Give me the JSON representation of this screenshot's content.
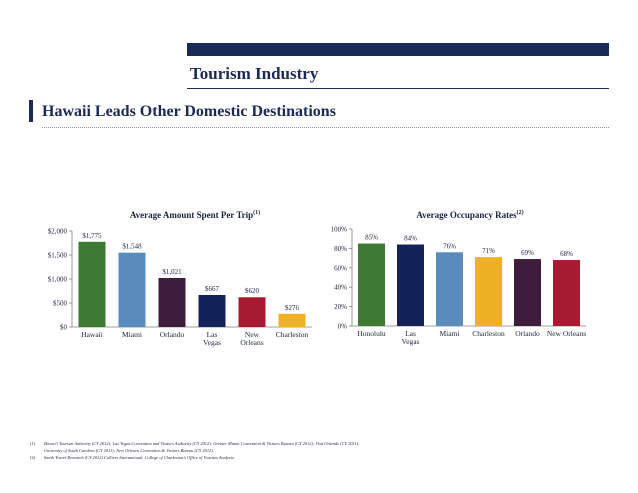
{
  "header": {
    "title": "Tourism Industry",
    "section_heading": "Hawaii Leads Other Domestic Destinations",
    "accent_color": "#1a2a57"
  },
  "chart_data": [
    {
      "type": "bar",
      "title": "Average Amount Spent Per Trip",
      "title_note": "(1)",
      "categories": [
        "Hawaii",
        "Miami",
        "Orlando",
        "Las Vegas",
        "New Orleans",
        "Charleston"
      ],
      "category_lines": [
        [
          "Hawaii"
        ],
        [
          "Miami"
        ],
        [
          "Orlando"
        ],
        [
          "Las",
          "Vegas"
        ],
        [
          "New",
          "Orleans"
        ],
        [
          "Charleston"
        ]
      ],
      "values": [
        1775,
        1548,
        1021,
        667,
        620,
        276
      ],
      "data_labels": [
        "$1,775",
        "$1,548",
        "$1,021",
        "$667",
        "$620",
        "$276"
      ],
      "colors": [
        "#3f7a35",
        "#5b8bbd",
        "#3d1c3c",
        "#14225a",
        "#a61a32",
        "#eeb025"
      ],
      "ylim": [
        0,
        2000
      ],
      "yticks": [
        0,
        500,
        1000,
        1500,
        2000
      ],
      "ytick_labels": [
        "$0",
        "$500",
        "$1,000",
        "$1,500",
        "$2,000"
      ],
      "xlabel": "",
      "ylabel": "",
      "grid": false
    },
    {
      "type": "bar",
      "title": "Average Occupancy Rates",
      "title_note": "(2)",
      "categories": [
        "Honolulu",
        "Las Vegas",
        "Miami",
        "Charleston",
        "Orlando",
        "New Orleans"
      ],
      "category_lines": [
        [
          "Honolulu"
        ],
        [
          "Las",
          "Vegas"
        ],
        [
          "Miami"
        ],
        [
          "Charleston"
        ],
        [
          "Orlando"
        ],
        [
          "New Orleans"
        ]
      ],
      "values": [
        85,
        84,
        76,
        71,
        69,
        68
      ],
      "data_labels": [
        "85%",
        "84%",
        "76%",
        "71%",
        "69%",
        "68%"
      ],
      "colors": [
        "#3f7a35",
        "#14225a",
        "#5b8bbd",
        "#eeb025",
        "#3d1c3c",
        "#a61a32"
      ],
      "ylim": [
        0,
        100
      ],
      "yticks": [
        0,
        20,
        40,
        60,
        80,
        100
      ],
      "ytick_labels": [
        "0%",
        "20%",
        "40%",
        "60%",
        "80%",
        "100%"
      ],
      "xlabel": "",
      "ylabel": "",
      "grid": false
    }
  ],
  "footnotes": [
    {
      "num": "(1)",
      "lines": [
        "Hawai'i Tourism Authority (CY 2012); Las Vegas Convention and Visitors Authority (CY 2012); Greater Miami Convention & Visitors Bureau (CY 2012); Visit Orlando (CY 2011);",
        "University of South Carolina (CY 2011); New Orleans Convention & Visitors Bureau (CY 2012)."
      ]
    },
    {
      "num": "(2)",
      "lines": [
        "Smith Travel Research (CY 2012) Colliers International. College of Charleston's Office of Tourism Analysis."
      ]
    }
  ]
}
